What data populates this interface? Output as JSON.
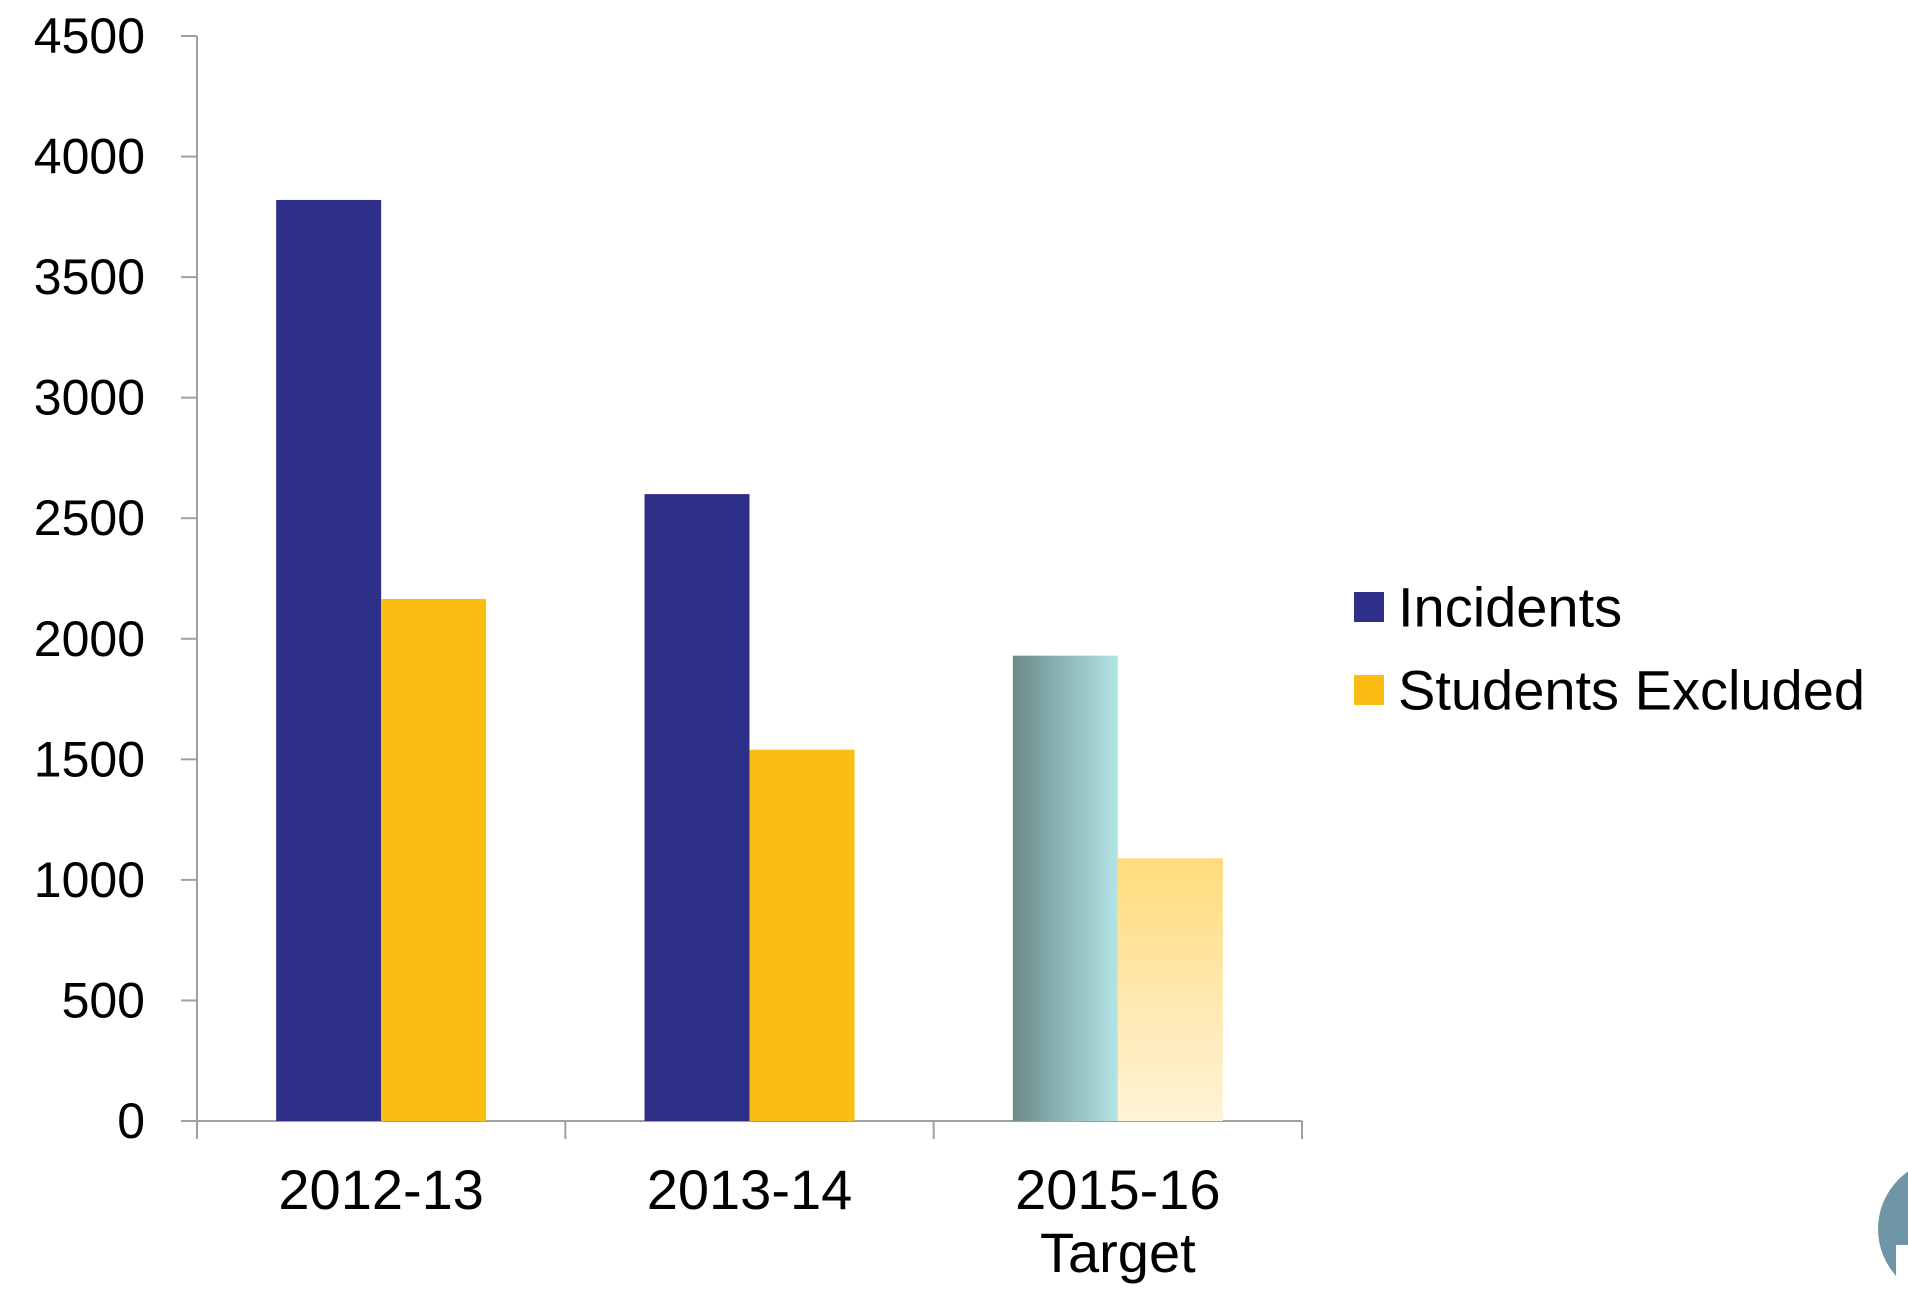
{
  "chart_data": {
    "type": "bar",
    "categories": [
      [
        "2012-13"
      ],
      [
        "2013-14"
      ],
      [
        "2015-16",
        "Target"
      ]
    ],
    "series": [
      {
        "name": "Incidents",
        "values": [
          3820,
          2600,
          1930
        ],
        "color": "#2e2f88"
      },
      {
        "name": "Students Excluded",
        "values": [
          2165,
          1540,
          1090
        ],
        "color": "#fbbd12"
      }
    ],
    "projected_category_index": 2,
    "projected_colors": {
      "Incidents": {
        "from": "#6b8a8a",
        "to": "#b2e4e6"
      },
      "Students Excluded": {
        "top": "#ffdc7c",
        "bottom": "#fff3d8"
      }
    },
    "yticks": [
      0,
      500,
      1000,
      1500,
      2000,
      2500,
      3000,
      3500,
      4000,
      4500
    ],
    "ylim": [
      0,
      4500
    ],
    "grid": false,
    "legend_position": "right",
    "axis_color": "#a0a0a0",
    "corner_badge_color": "#6f96a6"
  }
}
